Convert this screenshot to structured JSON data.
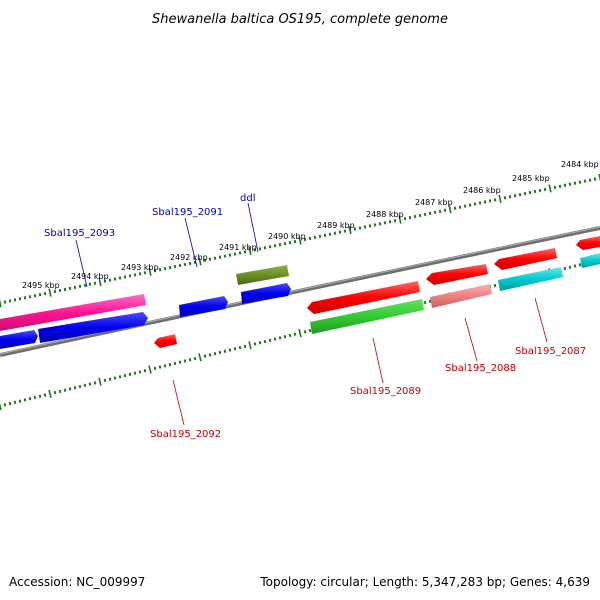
{
  "title": "Shewanella baltica OS195, complete genome",
  "footer": {
    "accession": "Accession: NC_009997",
    "summary": "Topology: circular; Length: 5,347,283 bp; Genes: 4,639"
  },
  "colors": {
    "background": "#ffffff",
    "backbone": "#808080",
    "tick_marks": "#1a7a1a",
    "label_blue": "#0000cc",
    "label_red": "#cc0000",
    "cds_red": "#ff0000",
    "cds_blue": "#0000ee",
    "cds_pink": "#ff1493",
    "cds_green": "#33cc33",
    "cds_olive": "#6b8e23",
    "cds_cyan": "#00cccc",
    "cds_salmon": "#f08080"
  },
  "scale_labels": [
    "2484 kbp",
    "2485 kbp",
    "2486 kbp",
    "2487 kbp",
    "2488 kbp",
    "2489 kbp",
    "2490 kbp",
    "2491 kbp",
    "2492 kbp",
    "2493 kbp",
    "2494 kbp",
    "2495 kbp"
  ],
  "gene_labels": [
    {
      "text": "Sbal195_2093",
      "strand": "top"
    },
    {
      "text": "Sbal195_2091",
      "strand": "top"
    },
    {
      "text": "ddl",
      "strand": "top"
    },
    {
      "text": "Sbal195_2092",
      "strand": "bottom"
    },
    {
      "text": "Sbal195_2089",
      "strand": "bottom"
    },
    {
      "text": "Sbal195_2088",
      "strand": "bottom"
    },
    {
      "text": "Sbal195_2087",
      "strand": "bottom"
    }
  ]
}
